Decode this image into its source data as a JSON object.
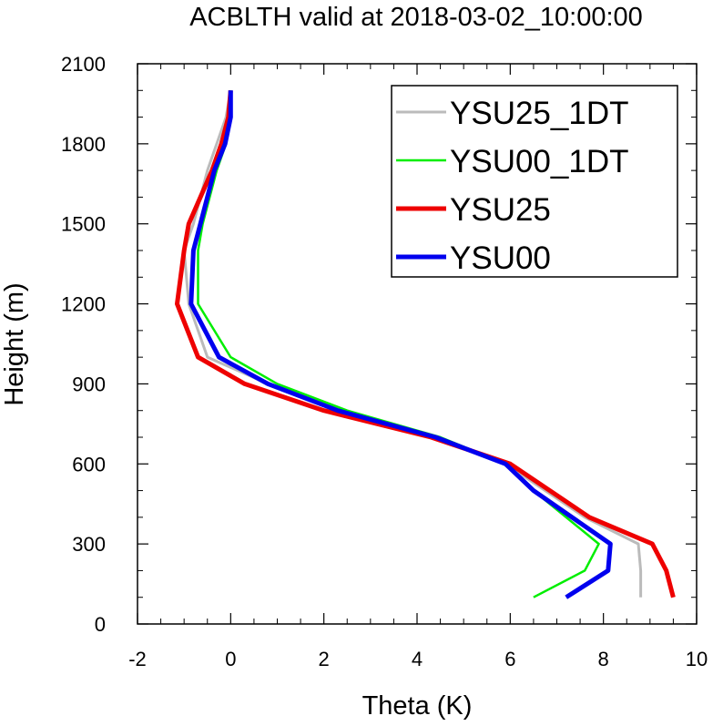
{
  "chart_data": {
    "type": "line",
    "title": "ACBLTH valid at 2018-03-02_10:00:00",
    "xlabel": "Theta (K)",
    "ylabel": "Height (m)",
    "xlim": [
      -2,
      10
    ],
    "ylim": [
      0,
      2100
    ],
    "xticks": [
      "-2",
      "0",
      "2",
      "4",
      "6",
      "8",
      "10"
    ],
    "yticks": [
      "0",
      "300",
      "600",
      "900",
      "1200",
      "1500",
      "1800",
      "2100"
    ],
    "legend_position": "top-right",
    "series": [
      {
        "name": "YSU25_1DT",
        "color": "#bbbbbb",
        "x": [
          8.8,
          8.8,
          8.75,
          7.6,
          5.9,
          4.4,
          2.3,
          0.8,
          -0.5,
          -0.9,
          -1.0,
          -0.8,
          -0.5,
          -0.3,
          -0.1,
          0.0
        ],
        "y": [
          100,
          200,
          300,
          400,
          600,
          700,
          800,
          900,
          1000,
          1200,
          1400,
          1500,
          1700,
          1800,
          1900,
          2000
        ]
      },
      {
        "name": "YSU00_1DT",
        "color": "#00ee00",
        "x": [
          6.5,
          7.6,
          7.9,
          6.5,
          5.9,
          4.5,
          2.5,
          1.0,
          0.0,
          -0.7,
          -0.7,
          -0.6,
          -0.3,
          -0.1,
          0.0,
          0.0
        ],
        "y": [
          100,
          200,
          300,
          500,
          600,
          700,
          800,
          900,
          1000,
          1200,
          1400,
          1500,
          1700,
          1800,
          1900,
          2000
        ]
      },
      {
        "name": "YSU25",
        "color": "#ee0000",
        "x": [
          9.5,
          9.35,
          9.05,
          7.7,
          6.0,
          4.3,
          2.0,
          0.3,
          -0.7,
          -1.15,
          -1.0,
          -0.9,
          -0.4,
          -0.2,
          -0.05,
          0.0
        ],
        "y": [
          100,
          200,
          300,
          400,
          600,
          700,
          800,
          900,
          1000,
          1200,
          1400,
          1500,
          1700,
          1800,
          1900,
          2000
        ]
      },
      {
        "name": "YSU00",
        "color": "#0000ee",
        "x": [
          7.2,
          8.1,
          8.15,
          6.5,
          5.9,
          4.4,
          2.3,
          0.8,
          -0.25,
          -0.85,
          -0.8,
          -0.65,
          -0.35,
          -0.12,
          0.0,
          0.0
        ],
        "y": [
          100,
          200,
          300,
          500,
          600,
          700,
          800,
          900,
          1000,
          1200,
          1400,
          1500,
          1700,
          1800,
          1900,
          2000
        ]
      }
    ]
  }
}
